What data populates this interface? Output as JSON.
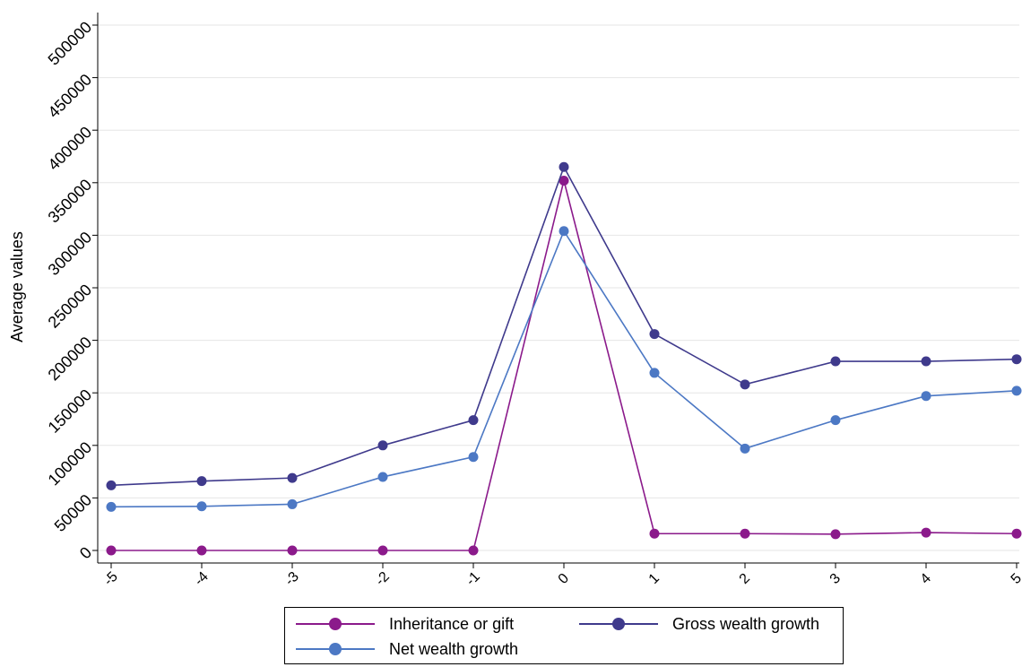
{
  "chart_data": {
    "type": "line",
    "title": "",
    "xlabel": "",
    "ylabel": "Average values",
    "x": [
      -5,
      -4,
      -3,
      -2,
      -1,
      0,
      1,
      2,
      3,
      4,
      5
    ],
    "x_tick_labels": [
      "-5",
      "-4",
      "-3",
      "-2",
      "-1",
      "0",
      "1",
      "2",
      "3",
      "4",
      "5"
    ],
    "xlim": [
      -5,
      5
    ],
    "ylim": [
      0,
      500000
    ],
    "y_ticks": [
      0,
      50000,
      100000,
      150000,
      200000,
      250000,
      300000,
      350000,
      400000,
      450000,
      500000
    ],
    "y_tick_labels": [
      "0",
      "50000",
      "100000",
      "150000",
      "200000",
      "250000",
      "300000",
      "350000",
      "400000",
      "450000",
      "500000"
    ],
    "grid": true,
    "legend_position": "bottom",
    "series": [
      {
        "name": "Inheritance or gift",
        "color": "#8B1A8B",
        "values": [
          0,
          0,
          0,
          0,
          0,
          352000,
          16000,
          16000,
          15500,
          17000,
          16000
        ]
      },
      {
        "name": "Gross wealth growth",
        "color": "#3F3A8C",
        "values": [
          62000,
          66000,
          69000,
          100000,
          124000,
          365000,
          206000,
          158000,
          180000,
          180000,
          182000
        ]
      },
      {
        "name": "Net wealth growth",
        "color": "#4C78C4",
        "values": [
          41500,
          42000,
          44000,
          70000,
          89000,
          304000,
          169000,
          97000,
          124000,
          147000,
          152000
        ]
      }
    ]
  }
}
